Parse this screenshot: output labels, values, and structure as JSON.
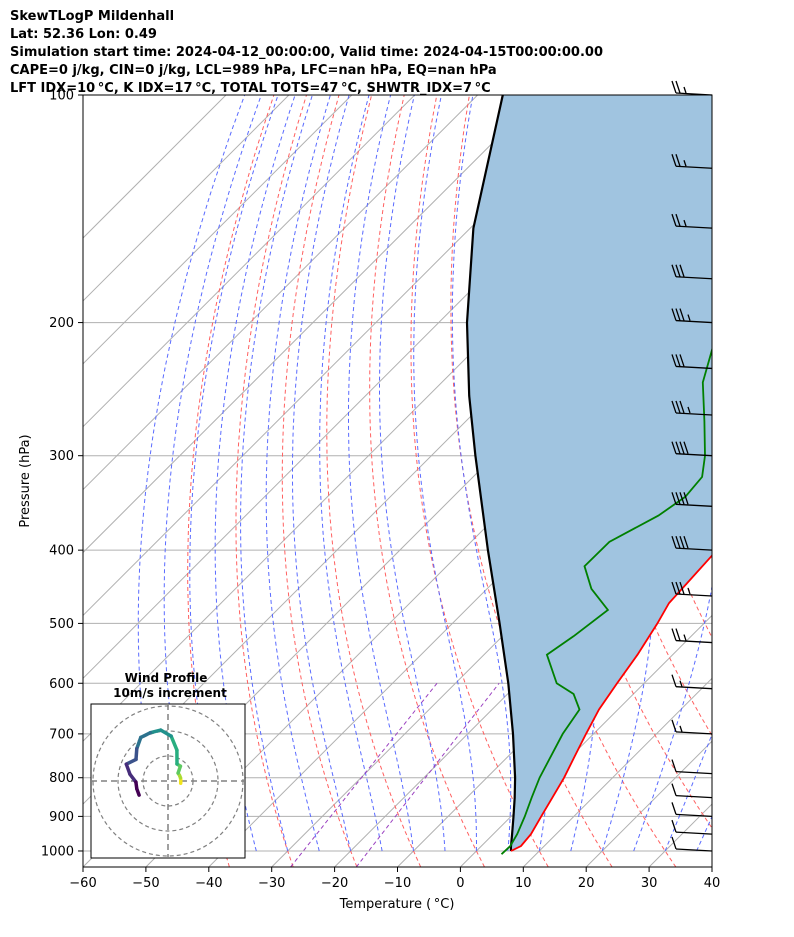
{
  "header": {
    "line1": "SkewTLogP Mildenhall",
    "line2": "Lat: 52.36   Lon: 0.49",
    "line3": "Simulation start time: 2024-04-12_00:00:00, Valid time: 2024-04-15T00:00:00.00",
    "line4": "CAPE=0 j/kg, CIN=0 j/kg, LCL=989 hPa, LFC=nan hPa, EQ=nan hPa",
    "line5": "LFT IDX=10 °C, K IDX=17 °C, TOTAL TOTS=47 °C, SHWTR_IDX=7 °C"
  },
  "chart_data": {
    "type": "line",
    "xlabel": "Temperature ( °C)",
    "ylabel": "Pressure (hPa)",
    "xlim": [
      -60,
      40
    ],
    "ylim": [
      1050,
      100
    ],
    "x_ticks": [
      -60,
      -50,
      -40,
      -30,
      -20,
      -10,
      0,
      10,
      20,
      30,
      40
    ],
    "y_ticks": [
      100,
      200,
      300,
      400,
      500,
      600,
      700,
      800,
      900,
      1000
    ],
    "y_scale": "log",
    "grid": true,
    "temperature": {
      "color": "#ff0000",
      "points": [
        [
          1000,
          5.5
        ],
        [
          985,
          6.3
        ],
        [
          950,
          6.0
        ],
        [
          900,
          4.8
        ],
        [
          850,
          3.6
        ],
        [
          800,
          2.3
        ],
        [
          750,
          0.6
        ],
        [
          700,
          -1.2
        ],
        [
          650,
          -3.0
        ],
        [
          600,
          -4.3
        ],
        [
          550,
          -5.6
        ],
        [
          500,
          -7.4
        ],
        [
          470,
          -8.8
        ],
        [
          440,
          -9.1
        ],
        [
          400,
          -9.6
        ],
        [
          370,
          -10.6
        ],
        [
          350,
          -11.6
        ],
        [
          320,
          -14.2
        ],
        [
          300,
          -17.1
        ],
        [
          280,
          -20.8
        ],
        [
          270,
          -22.9
        ],
        [
          250,
          -26.9
        ],
        [
          240,
          -28.9
        ],
        [
          230,
          -29.5
        ],
        [
          220,
          -30.0
        ],
        [
          210,
          -31.2
        ],
        [
          200,
          -33.1
        ],
        [
          190,
          -35.0
        ],
        [
          180,
          -36.3
        ],
        [
          170,
          -39.3
        ],
        [
          160,
          -42.0
        ],
        [
          150,
          -44.9
        ],
        [
          140,
          -47.7
        ],
        [
          130,
          -50.6
        ],
        [
          120,
          -53.0
        ],
        [
          110,
          -55.9
        ],
        [
          100,
          -58.0
        ]
      ]
    },
    "dewpoint": {
      "color": "#008000",
      "points": [
        [
          1010,
          4.5
        ],
        [
          985,
          4.6
        ],
        [
          950,
          3.8
        ],
        [
          900,
          2.2
        ],
        [
          850,
          0.3
        ],
        [
          800,
          -1.6
        ],
        [
          700,
          -4.9
        ],
        [
          650,
          -6.1
        ],
        [
          620,
          -9.5
        ],
        [
          600,
          -13.9
        ],
        [
          550,
          -20.0
        ],
        [
          520,
          -18.7
        ],
        [
          480,
          -17.4
        ],
        [
          450,
          -23.4
        ],
        [
          420,
          -28.1
        ],
        [
          390,
          -28.0
        ],
        [
          360,
          -24.4
        ],
        [
          340,
          -23.1
        ],
        [
          320,
          -23.6
        ],
        [
          300,
          -26.5
        ],
        [
          270,
          -32.1
        ],
        [
          240,
          -38.5
        ],
        [
          210,
          -43.5
        ],
        [
          200,
          -44.9
        ],
        [
          185,
          -48.6
        ],
        [
          175,
          -52.0
        ],
        [
          150,
          -54.0
        ],
        [
          125,
          -56.8
        ],
        [
          110,
          -58.9
        ],
        [
          100,
          -60.7
        ]
      ]
    },
    "parcel": {
      "color": "#000000",
      "points": [
        [
          1000,
          5.5
        ],
        [
          989,
          4.9
        ],
        [
          950,
          3.0
        ],
        [
          900,
          0.4
        ],
        [
          850,
          -2.4
        ],
        [
          800,
          -5.5
        ],
        [
          700,
          -12.8
        ],
        [
          600,
          -21.6
        ],
        [
          500,
          -32.5
        ],
        [
          400,
          -46.0
        ],
        [
          300,
          -63.0
        ],
        [
          250,
          -73.5
        ],
        [
          200,
          -85.5
        ],
        [
          150,
          -99.5
        ],
        [
          100,
          -116.0
        ]
      ]
    },
    "cin_shading_color": "#a0c4e0",
    "wind_barbs": [
      {
        "p": 100,
        "speed_kt": 25
      },
      {
        "p": 125,
        "speed_kt": 25
      },
      {
        "p": 150,
        "speed_kt": 25
      },
      {
        "p": 175,
        "speed_kt": 30
      },
      {
        "p": 200,
        "speed_kt": 35
      },
      {
        "p": 230,
        "speed_kt": 30
      },
      {
        "p": 265,
        "speed_kt": 35
      },
      {
        "p": 300,
        "speed_kt": 40
      },
      {
        "p": 350,
        "speed_kt": 40
      },
      {
        "p": 400,
        "speed_kt": 40
      },
      {
        "p": 460,
        "speed_kt": 35
      },
      {
        "p": 530,
        "speed_kt": 25
      },
      {
        "p": 610,
        "speed_kt": 15
      },
      {
        "p": 700,
        "speed_kt": 15
      },
      {
        "p": 790,
        "speed_kt": 10
      },
      {
        "p": 850,
        "speed_kt": 10
      },
      {
        "p": 900,
        "speed_kt": 10
      },
      {
        "p": 950,
        "speed_kt": 10
      },
      {
        "p": 1000,
        "speed_kt": 10
      }
    ],
    "inset": {
      "title_line1": "Wind Profile",
      "title_line2": "10m/s increment",
      "rings": 3
    }
  }
}
